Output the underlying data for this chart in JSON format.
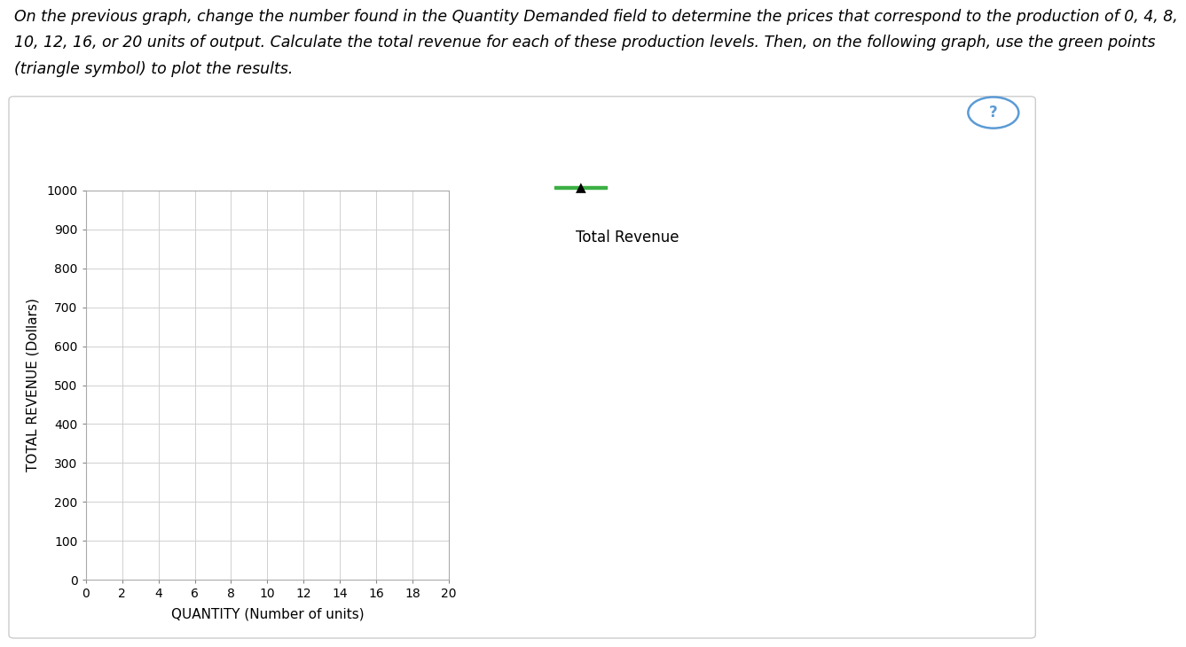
{
  "line1": "On the previous graph, change the number found in the Quantity Demanded field to determine the prices that correspond to the production of 0, 4, 8,",
  "line2": "10, 12, 16, or 20 units of output. Calculate the total revenue for each of these production levels. Then, on the following graph, use the green points",
  "line3": "(triangle symbol) to plot the results.",
  "xlabel": "QUANTITY (Number of units)",
  "ylabel": "TOTAL REVENUE (Dollars)",
  "xlim": [
    0,
    20
  ],
  "ylim": [
    0,
    1000
  ],
  "xticks": [
    0,
    2,
    4,
    6,
    8,
    10,
    12,
    14,
    16,
    18,
    20
  ],
  "yticks": [
    0,
    100,
    200,
    300,
    400,
    500,
    600,
    700,
    800,
    900,
    1000
  ],
  "legend_label": "Total Revenue",
  "legend_marker_color": "#3cb043",
  "legend_marker_edge_color": "#000000",
  "legend_line_color": "#3cb043",
  "background_color": "#ffffff",
  "plot_bg_color": "#ffffff",
  "grid_color": "#d0d0d0",
  "panel_border_color": "#cccccc",
  "question_mark_color": "#5b9bd5",
  "title_fontsize": 12.5,
  "axis_label_fontsize": 11,
  "tick_fontsize": 10,
  "legend_fontsize": 12
}
